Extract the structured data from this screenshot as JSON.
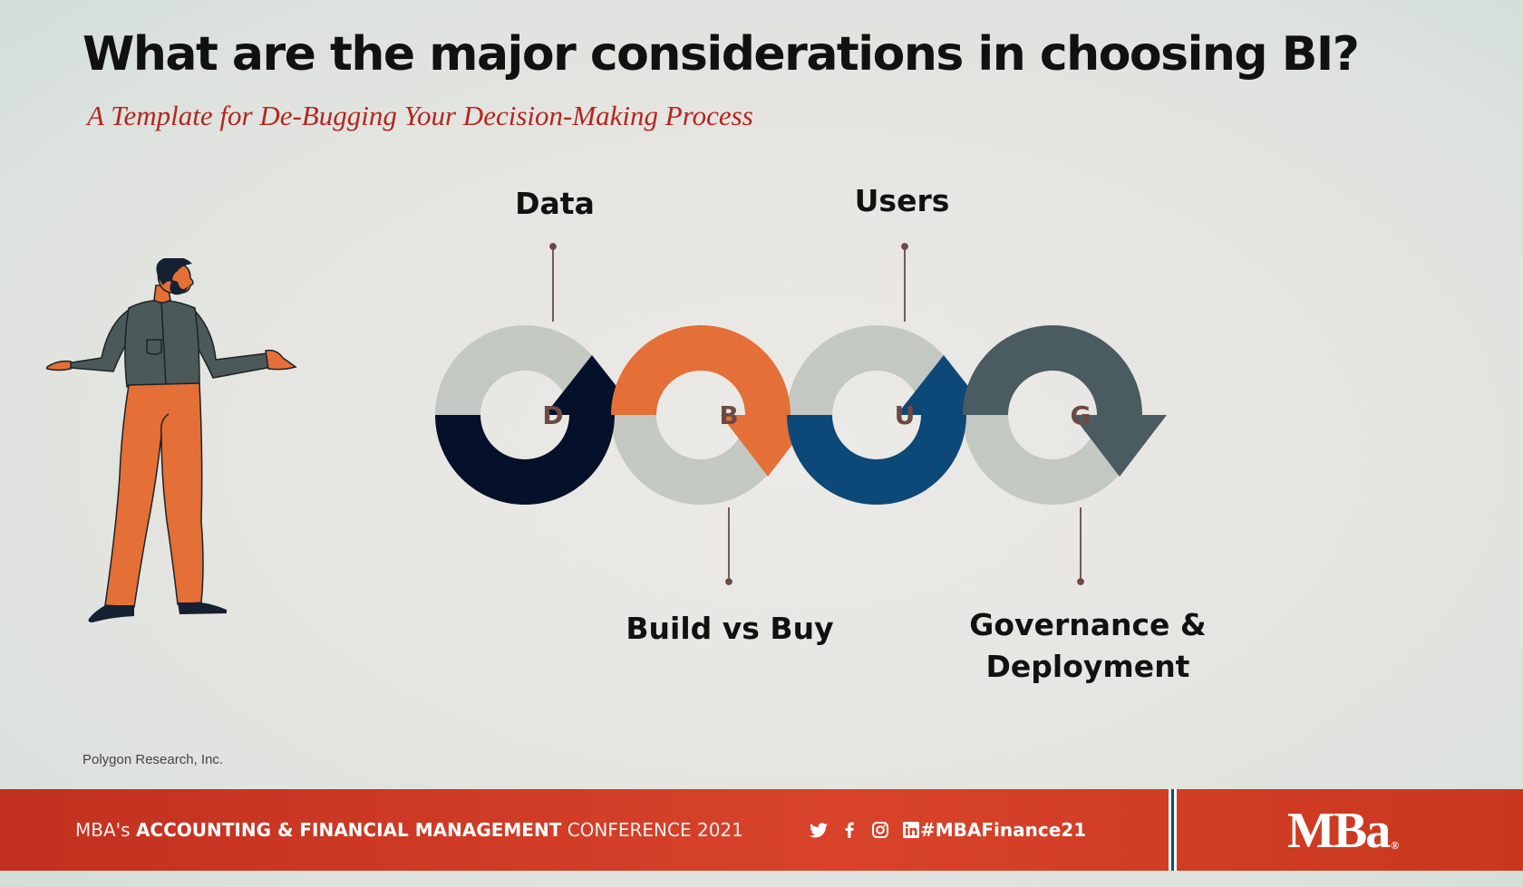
{
  "slide": {
    "title": "What are the major considerations in choosing BI?",
    "subtitle": "A Template for De-Bugging Your Decision-Making Process",
    "credit": "Polygon Research, Inc."
  },
  "diagram": {
    "steps": [
      {
        "letter": "D",
        "label": "Data",
        "color": "#05102a"
      },
      {
        "letter": "B",
        "label": "Build vs Buy",
        "color": "#e46f37"
      },
      {
        "letter": "U",
        "label": "Users",
        "color": "#0c4878"
      },
      {
        "letter": "G",
        "label": "Governance & Deployment",
        "color": "#4a5b61"
      }
    ],
    "track_color": "#c3c8c3"
  },
  "footer": {
    "prefix": "MBA's",
    "event_bold": "ACCOUNTING & FINANCIAL MANAGEMENT",
    "event_light": "CONFERENCE 2021",
    "social_icons": [
      "twitter-icon",
      "facebook-icon",
      "instagram-icon",
      "linkedin-icon"
    ],
    "hashtag": "#MBAFinance21",
    "logo": "MBa",
    "logo_mark": "®",
    "color": "#d3402a"
  }
}
